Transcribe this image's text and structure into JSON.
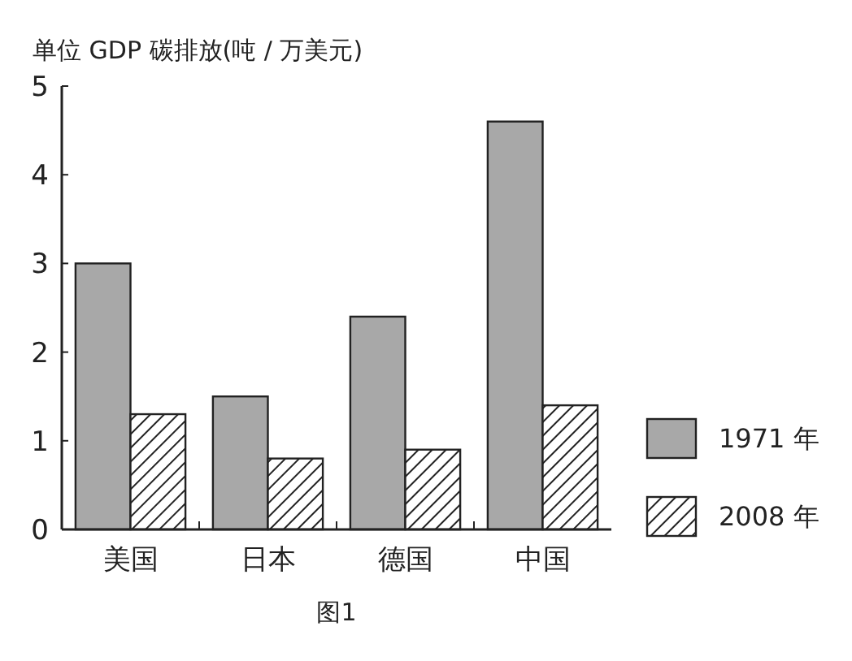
{
  "chart_data": {
    "type": "bar",
    "ylabel": "单位 GDP 碳排放(吨 / 万美元)",
    "annotations": [
      "图1"
    ],
    "categories": [
      "美国",
      "日本",
      "德国",
      "中国"
    ],
    "series": [
      {
        "name": "1971 年",
        "color": "#a8a8a8",
        "values": [
          3.0,
          1.5,
          2.4,
          4.6
        ]
      },
      {
        "name": "2008 年",
        "color": "#222222",
        "values": [
          1.3,
          0.8,
          0.9,
          1.4
        ]
      }
    ],
    "ylim": [
      0,
      5
    ],
    "yticks": [
      0,
      1,
      2,
      3,
      4,
      5
    ],
    "grid": false,
    "legend": "right"
  }
}
